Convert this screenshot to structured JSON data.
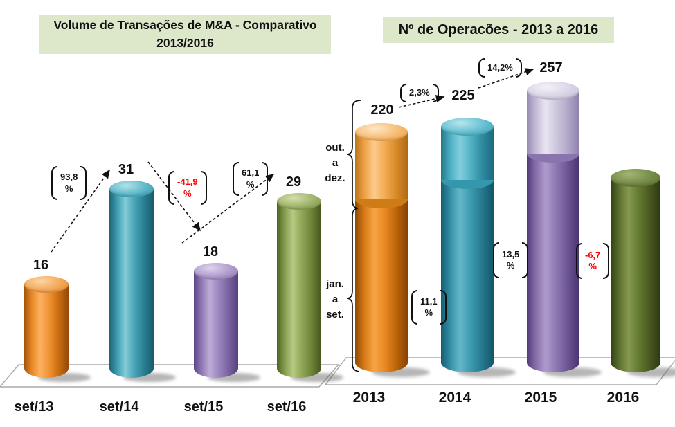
{
  "page": {
    "background": "#ffffff",
    "title_bg": "#dde8ca",
    "negative_color": "#ff0000",
    "text_color": "#111111"
  },
  "left_chart": {
    "title": "Volume de Transações de M&A - Comparativo\n2013/2016"
  },
  "right_chart": {
    "title": "Nº de Operacões  - 2013 a 2016",
    "period_label_top": "out.\na\ndez.",
    "period_label_bottom": "jan.\na\nset.",
    "totals": [
      "220",
      "225",
      "257"
    ]
  },
  "annotations": {
    "left": [
      {
        "text": "93,8\n%",
        "color": "#111111"
      },
      {
        "text": "-41,9\n%",
        "color": "#ff0000"
      },
      {
        "text": "61,1\n%",
        "color": "#111111"
      }
    ],
    "right": [
      {
        "text": "2,3%",
        "color": "#111111"
      },
      {
        "text": "14,2%",
        "color": "#111111"
      },
      {
        "text": "11,1\n%",
        "color": "#111111"
      },
      {
        "text": "13,5\n%",
        "color": "#111111"
      },
      {
        "text": "-6,7\n%",
        "color": "#ff0000"
      }
    ]
  },
  "chart_data": [
    {
      "type": "bar",
      "title": "Volume de Transações de M&A - Comparativo 2013/2016",
      "categories": [
        "set/13",
        "set/14",
        "set/15",
        "set/16"
      ],
      "values": [
        16,
        31,
        18,
        29
      ],
      "bar_colors": [
        "#e98b28",
        "#3f9fb2",
        "#907ab4",
        "#879e4e"
      ],
      "pct_changes": [
        "93,8 %",
        "-41,9 %",
        "61,1 %"
      ],
      "ylim": [
        0,
        35
      ],
      "grid": false,
      "legend": false,
      "style": "3d-cylinder"
    },
    {
      "type": "stacked-bar",
      "title": "Nº de Operacões  - 2013 a 2016",
      "categories": [
        "2013",
        "2014",
        "2015",
        "2016"
      ],
      "series": [
        {
          "name": "jan. a set.",
          "values": [
            153,
            170,
            193,
            180
          ],
          "colors": [
            "#d87b15",
            "#3391a7",
            "#8871ab",
            "#5d7330"
          ]
        },
        {
          "name": "out. a dez.",
          "values": [
            67,
            55,
            64,
            null
          ],
          "colors": [
            "#efa246",
            "#4db0c4",
            "#c6bdd9",
            null
          ]
        }
      ],
      "totals": [
        220,
        225,
        257,
        null
      ],
      "total_pct_changes": [
        "2,3%",
        "14,2%"
      ],
      "jan_set_pct_changes": [
        "11,1 %",
        "13,5 %",
        "-6,7 %"
      ],
      "ylim": [
        0,
        270
      ],
      "grid": false,
      "legend": false,
      "style": "3d-cylinder"
    }
  ]
}
